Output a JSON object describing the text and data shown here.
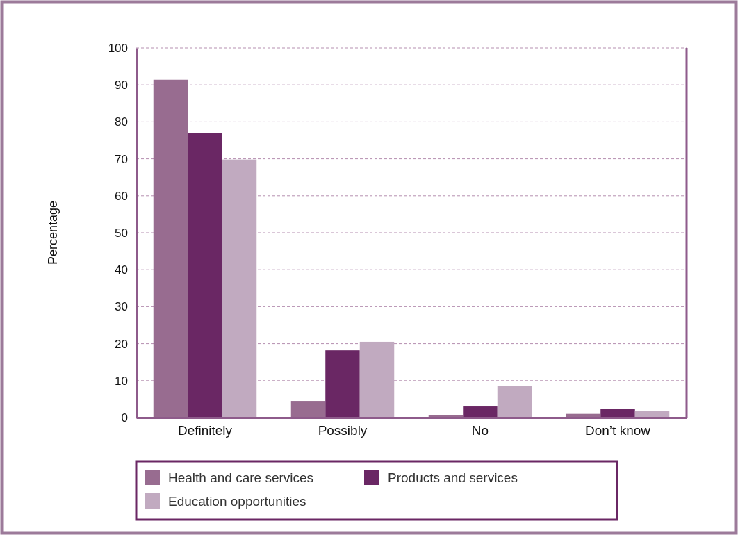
{
  "chart_data": {
    "type": "bar",
    "ylabel": "Percentage",
    "categories": [
      "Definitely",
      "Possibly",
      "No",
      "Don’t know"
    ],
    "series": [
      {
        "name": "Health and care services",
        "color": "#986c90",
        "values": [
          91.4,
          4.5,
          0.6,
          1.0
        ]
      },
      {
        "name": "Products and services",
        "color": "#6a2764",
        "values": [
          76.9,
          18.2,
          3.0,
          2.3
        ]
      },
      {
        "name": "Education opportunities",
        "color": "#c1aac0",
        "values": [
          69.8,
          20.5,
          8.5,
          1.7
        ]
      }
    ],
    "ylim": [
      0,
      100
    ],
    "yticks": [
      0,
      10,
      20,
      30,
      40,
      50,
      60,
      70,
      80,
      90,
      100
    ],
    "grid": "y",
    "legend": "bottom"
  }
}
